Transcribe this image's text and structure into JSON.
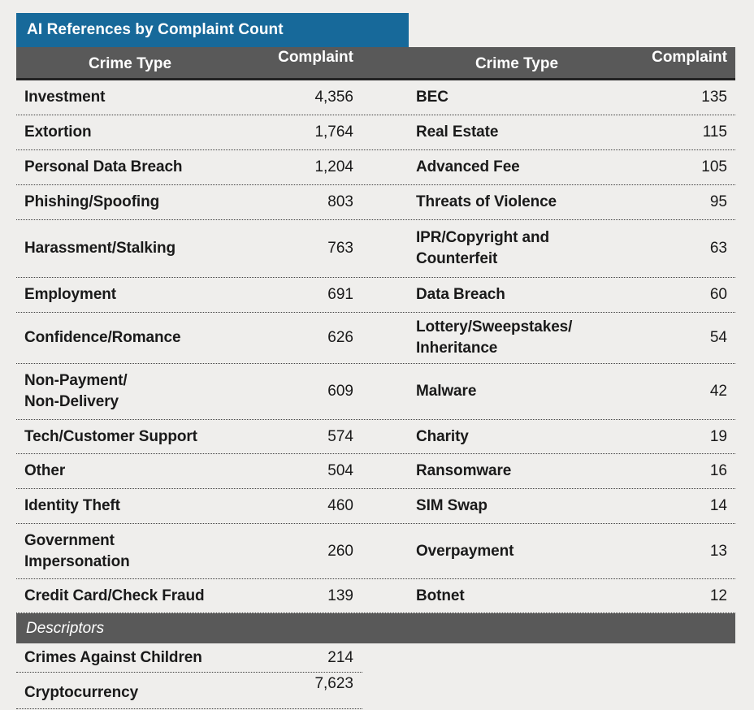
{
  "title": "AI References by Complaint Count",
  "colors": {
    "accent_blue": "#17699A",
    "header_gray": "#595959",
    "page_bg": "#EFEEEC",
    "text": "#1A1A1A"
  },
  "header": {
    "crime_type_left": "Crime Type",
    "complaint_left": "Complaint",
    "crime_type_right": "Crime Type",
    "complaint_right": "Complaint"
  },
  "rows": [
    {
      "left_label": "Investment",
      "left_value": "4,356",
      "right_label": "BEC",
      "right_value": "135"
    },
    {
      "left_label": "Extortion",
      "left_value": "1,764",
      "right_label": "Real Estate",
      "right_value": "115"
    },
    {
      "left_label": "Personal Data Breach",
      "left_value": "1,204",
      "right_label": "Advanced Fee",
      "right_value": "105"
    },
    {
      "left_label": "Phishing/Spoofing",
      "left_value": "803",
      "right_label": "Threats of Violence",
      "right_value": "95"
    },
    {
      "left_label": "Harassment/Stalking",
      "left_value": "763",
      "right_label": "IPR/Copyright and\nCounterfeit",
      "right_value": "63"
    },
    {
      "left_label": "Employment",
      "left_value": "691",
      "right_label": "Data Breach",
      "right_value": "60"
    },
    {
      "left_label": "Confidence/Romance",
      "left_value": "626",
      "right_label": "Lottery/Sweepstakes/\nInheritance",
      "right_value": "54"
    },
    {
      "left_label": "Non-Payment/\nNon-Delivery",
      "left_value": "609",
      "right_label": "Malware",
      "right_value": "42"
    },
    {
      "left_label": "Tech/Customer Support",
      "left_value": "574",
      "right_label": "Charity",
      "right_value": "19"
    },
    {
      "left_label": "Other",
      "left_value": "504",
      "right_label": "Ransomware",
      "right_value": "16"
    },
    {
      "left_label": "Identity Theft",
      "left_value": "460",
      "right_label": "SIM Swap",
      "right_value": "14"
    },
    {
      "left_label": "Government\nImpersonation",
      "left_value": "260",
      "right_label": "Overpayment",
      "right_value": "13"
    },
    {
      "left_label": "Credit Card/Check Fraud",
      "left_value": "139",
      "right_label": "Botnet",
      "right_value": "12"
    }
  ],
  "descriptors": {
    "label": "Descriptors",
    "rows": [
      {
        "label": "Crimes Against Children",
        "value": "214"
      },
      {
        "label": "Cryptocurrency",
        "value": "7,623"
      }
    ]
  },
  "chart_data": {
    "type": "table",
    "title": "AI References by Complaint Count",
    "columns": [
      "Crime Type",
      "Complaint"
    ],
    "rows": [
      [
        "Investment",
        4356
      ],
      [
        "Extortion",
        1764
      ],
      [
        "Personal Data Breach",
        1204
      ],
      [
        "Phishing/Spoofing",
        803
      ],
      [
        "Harassment/Stalking",
        763
      ],
      [
        "Employment",
        691
      ],
      [
        "Confidence/Romance",
        626
      ],
      [
        "Non-Payment/Non-Delivery",
        609
      ],
      [
        "Tech/Customer Support",
        574
      ],
      [
        "Other",
        504
      ],
      [
        "Identity Theft",
        460
      ],
      [
        "Government Impersonation",
        260
      ],
      [
        "Credit Card/Check Fraud",
        139
      ],
      [
        "BEC",
        135
      ],
      [
        "Real Estate",
        115
      ],
      [
        "Advanced Fee",
        105
      ],
      [
        "Threats of Violence",
        95
      ],
      [
        "IPR/Copyright and Counterfeit",
        63
      ],
      [
        "Data Breach",
        60
      ],
      [
        "Lottery/Sweepstakes/Inheritance",
        54
      ],
      [
        "Malware",
        42
      ],
      [
        "Charity",
        19
      ],
      [
        "Ransomware",
        16
      ],
      [
        "SIM Swap",
        14
      ],
      [
        "Overpayment",
        13
      ],
      [
        "Botnet",
        12
      ]
    ],
    "descriptors": [
      [
        "Crimes Against Children",
        214
      ],
      [
        "Cryptocurrency",
        7623
      ]
    ]
  }
}
